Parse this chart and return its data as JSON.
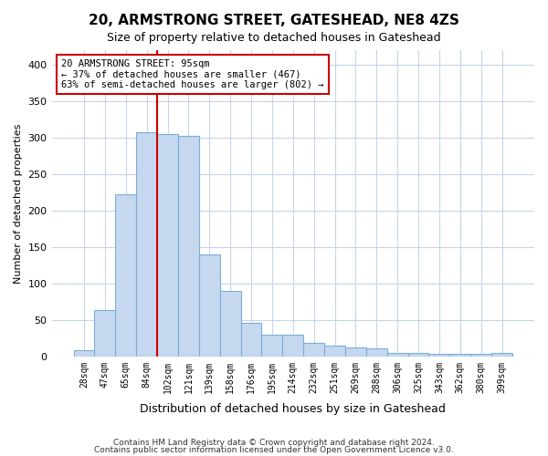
{
  "title": "20, ARMSTRONG STREET, GATESHEAD, NE8 4ZS",
  "subtitle": "Size of property relative to detached houses in Gateshead",
  "xlabel": "Distribution of detached houses by size in Gateshead",
  "ylabel": "Number of detached properties",
  "bar_color": "#c5d8f0",
  "bar_edge_color": "#7aafd4",
  "vline_color": "#cc0000",
  "vline_x": 4,
  "categories": [
    "28sqm",
    "47sqm",
    "65sqm",
    "84sqm",
    "102sqm",
    "121sqm",
    "139sqm",
    "158sqm",
    "176sqm",
    "195sqm",
    "214sqm",
    "232sqm",
    "251sqm",
    "269sqm",
    "288sqm",
    "306sqm",
    "325sqm",
    "343sqm",
    "362sqm",
    "380sqm",
    "399sqm"
  ],
  "values": [
    8,
    64,
    222,
    307,
    305,
    302,
    140,
    90,
    46,
    30,
    30,
    19,
    15,
    12,
    11,
    5,
    5,
    3,
    3,
    3,
    5
  ],
  "ylim": [
    0,
    420
  ],
  "yticks": [
    0,
    50,
    100,
    150,
    200,
    250,
    300,
    350,
    400
  ],
  "annotation_text": "20 ARMSTRONG STREET: 95sqm\n← 37% of detached houses are smaller (467)\n63% of semi-detached houses are larger (802) →",
  "annotation_box_color": "#ffffff",
  "annotation_box_edge": "#cc0000",
  "footer1": "Contains HM Land Registry data © Crown copyright and database right 2024.",
  "footer2": "Contains public sector information licensed under the Open Government Licence v3.0.",
  "background_color": "#ffffff",
  "grid_color": "#c8d4e8"
}
